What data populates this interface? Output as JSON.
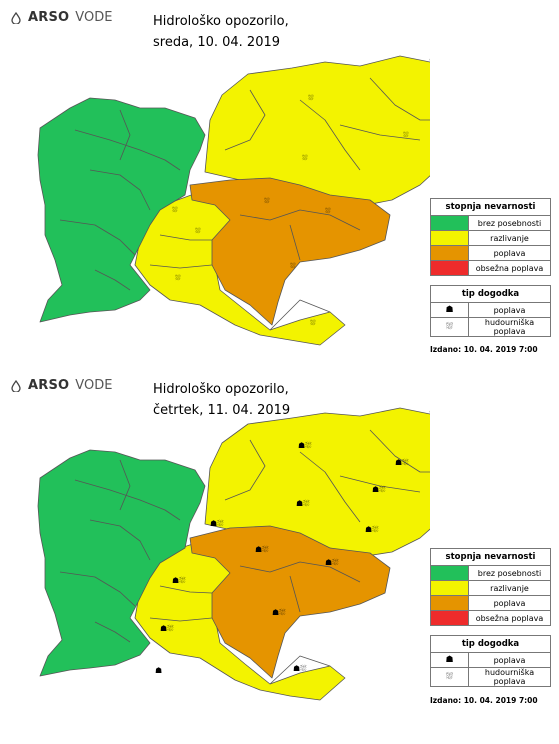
{
  "brand": {
    "bold": "ARSO",
    "light": "VODE"
  },
  "colors": {
    "green": "#22c05a",
    "yellow": "#f3f300",
    "orange": "#e59400",
    "red": "#ee2b2b",
    "border": "#555555"
  },
  "legend": {
    "level_title": "stopnja nevarnosti",
    "levels": [
      {
        "label": "brez posebnosti",
        "color": "#22c05a"
      },
      {
        "label": "razlivanje",
        "color": "#f3f300"
      },
      {
        "label": "poplava",
        "color": "#e59400"
      },
      {
        "label": "obsežna poplava",
        "color": "#ee2b2b"
      }
    ],
    "type_title": "tip dogodka",
    "types": [
      {
        "label": "poplava",
        "icon": "flood-icon"
      },
      {
        "label": "hudourniška poplava",
        "icon": "flash-flood-icon"
      }
    ]
  },
  "maps": [
    {
      "title_line1": "Hidrološko opozorilo,",
      "title_line2": "sreda, 10. 04. 2019",
      "issued": "Izdano: 10. 04. 2019 7:00"
    },
    {
      "title_line1": "Hidrološko opozorilo,",
      "title_line2": "četrtek, 11. 04. 2019",
      "issued": "Izdano: 10. 04. 2019 7:00"
    }
  ]
}
